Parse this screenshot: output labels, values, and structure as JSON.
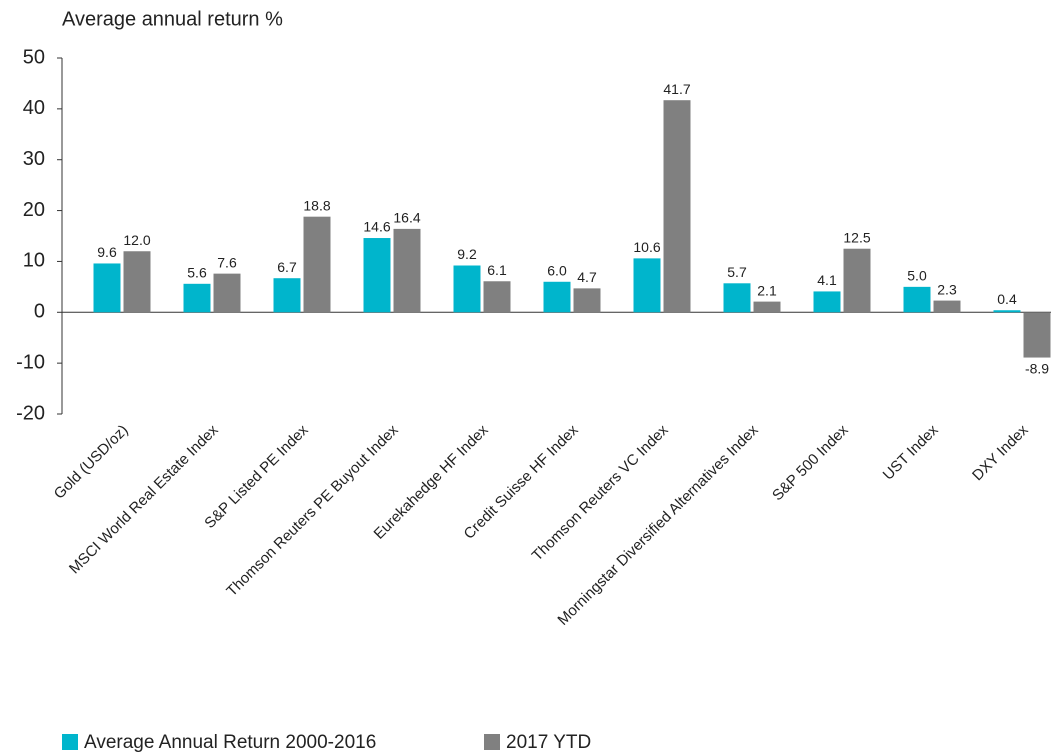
{
  "chart_data": {
    "type": "bar",
    "y_axis_label": "Average annual return %",
    "categories": [
      "Gold (USD/oz)",
      "MSCI World Real Estate Index",
      "S&P Listed PE Index",
      "Thomson Reuters PE Buyout Index",
      "Eurekahedge HF Index",
      "Credit Suisse HF Index",
      "Thomson Reuters VC Index",
      "Morningstar Diversified Alternatives Index",
      "S&P 500 Index",
      "UST Index",
      "DXY Index"
    ],
    "series": [
      {
        "name": "Average Annual Return 2000-2016",
        "color": "#00b5cc",
        "values": [
          9.6,
          5.6,
          6.7,
          14.6,
          9.2,
          6.0,
          10.6,
          5.7,
          4.1,
          5.0,
          0.4
        ],
        "value_labels": [
          "9.6",
          "5.6",
          "6.7",
          "14.6",
          "9.2",
          "6.0",
          "10.6",
          "5.7",
          "4.1",
          "5.0",
          "0.4"
        ]
      },
      {
        "name": "2017 YTD",
        "color": "#808080",
        "values": [
          12.0,
          7.6,
          18.8,
          16.4,
          6.1,
          4.7,
          41.7,
          2.1,
          12.5,
          2.3,
          -8.9
        ],
        "value_labels": [
          "12.0",
          "7.6",
          "18.8",
          "16.4",
          "6.1",
          "4.7",
          "41.7",
          "2.1",
          "12.5",
          "2.3",
          "-8.9"
        ]
      }
    ],
    "ylim": [
      -20,
      50
    ],
    "yticks": [
      -20,
      -10,
      0,
      10,
      20,
      30,
      40,
      50
    ],
    "grid": false
  }
}
